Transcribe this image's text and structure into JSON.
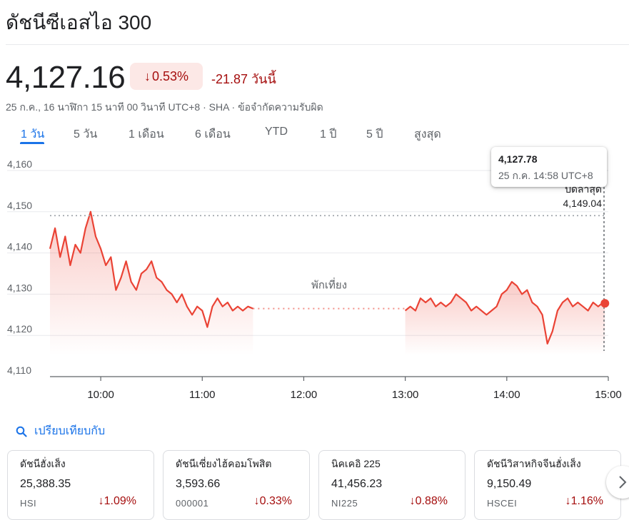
{
  "title": "ดัชนีซีเอสไอ 300",
  "quote": {
    "price": "4,127.16",
    "change_pct": "0.53%",
    "change_abs": "-21.87 วันนี้",
    "meta": "25 ก.ค., 16 นาฬิกา 15 นาที 00 วินาที UTC+8 · SHA · ข้อจำกัดความรับผิด"
  },
  "tabs": [
    "1 วัน",
    "5 วัน",
    "1 เดือน",
    "6 เดือน",
    "YTD",
    "1 ปี",
    "5 ปี",
    "สูงสุด"
  ],
  "tooltip": {
    "value": "4,127.78",
    "time": "25 ก.ค. 14:58 UTC+8"
  },
  "prev_close": {
    "label": "ปิดล่าสุด",
    "value": "4,149.04"
  },
  "lunch_label": "พักเที่ยง",
  "compare_label": "เปรียบเทียบกับ",
  "colors": {
    "line": "#ea4335",
    "negative": "#a50e0e",
    "accent": "#1a73e8"
  },
  "chart_data": {
    "type": "line",
    "ylim": [
      4110,
      4160
    ],
    "y_ticks": [
      "4,110",
      "4,120",
      "4,130",
      "4,140",
      "4,150",
      "4,160"
    ],
    "x_ticks": [
      "10:00",
      "11:00",
      "12:00",
      "13:00",
      "14:00",
      "15:00"
    ],
    "prev_close": 4149.04,
    "current": 4127.78,
    "series": [
      {
        "x": [
          "09:30",
          "09:33",
          "09:36",
          "09:39",
          "09:42",
          "09:45",
          "09:48",
          "09:51",
          "09:54",
          "09:57",
          "10:00",
          "10:03",
          "10:06",
          "10:09",
          "10:12",
          "10:15",
          "10:18",
          "10:21",
          "10:24",
          "10:27",
          "10:30",
          "10:33",
          "10:36",
          "10:39",
          "10:42",
          "10:45",
          "10:48",
          "10:51",
          "10:54",
          "10:57",
          "11:00",
          "11:03",
          "11:06",
          "11:09",
          "11:12",
          "11:15",
          "11:18",
          "11:21",
          "11:24",
          "11:27",
          "11:30"
        ],
        "values": [
          4141,
          4146,
          4139,
          4144,
          4137,
          4142,
          4140,
          4146,
          4150,
          4144,
          4141,
          4137,
          4139,
          4131,
          4134,
          4138,
          4133,
          4131,
          4135,
          4136,
          4138,
          4134,
          4133,
          4131,
          4130,
          4128,
          4130,
          4127,
          4125,
          4127,
          4126,
          4122,
          4127,
          4129,
          4127,
          4128,
          4126,
          4127,
          4126,
          4127,
          4126.5
        ]
      },
      {
        "x": [
          "13:00",
          "13:03",
          "13:06",
          "13:09",
          "13:12",
          "13:15",
          "13:18",
          "13:21",
          "13:24",
          "13:27",
          "13:30",
          "13:33",
          "13:36",
          "13:39",
          "13:42",
          "13:45",
          "13:48",
          "13:51",
          "13:54",
          "13:57",
          "14:00",
          "14:03",
          "14:06",
          "14:09",
          "14:12",
          "14:15",
          "14:18",
          "14:21",
          "14:24",
          "14:27",
          "14:30",
          "14:33",
          "14:36",
          "14:39",
          "14:42",
          "14:45",
          "14:48",
          "14:51",
          "14:54",
          "14:57",
          "14:58"
        ],
        "values": [
          4126,
          4127,
          4126,
          4129,
          4128,
          4129,
          4127,
          4128,
          4127,
          4128,
          4130,
          4129,
          4128,
          4126,
          4127,
          4126,
          4125,
          4126,
          4127,
          4130,
          4131,
          4133,
          4132,
          4130,
          4131,
          4128,
          4127,
          4125,
          4118,
          4121,
          4126,
          4128,
          4129,
          4127,
          4128,
          4127,
          4126,
          4128,
          4127,
          4128,
          4127.78
        ]
      }
    ]
  },
  "compare_cards": [
    {
      "name": "ดัชนีฮั่งเส็ง",
      "value": "25,388.35",
      "symbol": "HSI",
      "change": "1.09%"
    },
    {
      "name": "ดัชนีเซี่ยงไฮ้คอมโพสิต",
      "value": "3,593.66",
      "symbol": "000001",
      "change": "0.33%"
    },
    {
      "name": "นิคเคอิ 225",
      "value": "41,456.23",
      "symbol": "NI225",
      "change": "0.88%"
    },
    {
      "name": "ดัชนีวิสาหกิจจีนฮั่งเส็ง",
      "value": "9,150.49",
      "symbol": "HSCEI",
      "change": "1.16%"
    }
  ],
  "icons": {
    "down_arrow": "arrow-down-icon",
    "search": "search-icon",
    "next": "chevron-right-icon"
  }
}
